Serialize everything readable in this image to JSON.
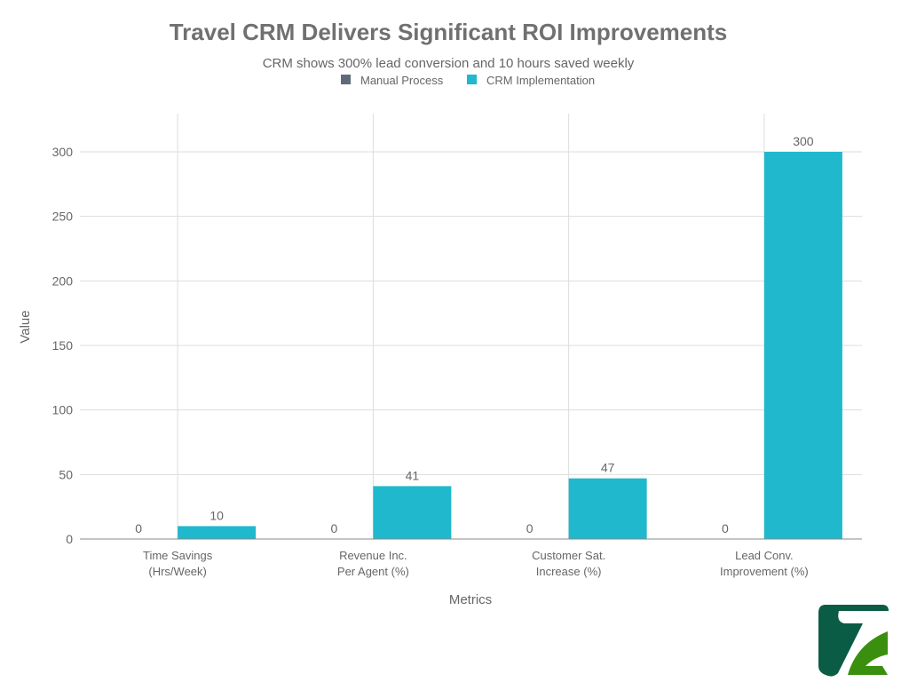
{
  "chart_data": {
    "type": "bar",
    "title": "Travel CRM Delivers Significant ROI Improvements",
    "subtitle": "CRM shows 300% lead conversion and 10 hours saved weekly",
    "xlabel": "Metrics",
    "ylabel": "Value",
    "ylim": [
      0,
      330
    ],
    "yticks": [
      0,
      50,
      100,
      150,
      200,
      250,
      300
    ],
    "grid": true,
    "legend_placement": "top-center",
    "categories": [
      [
        "Time Savings",
        "(Hrs/Week)"
      ],
      [
        "Revenue Inc.",
        "Per Agent (%)"
      ],
      [
        "Customer Sat.",
        "Increase (%)"
      ],
      [
        "Lead Conv.",
        "Improvement (%)"
      ]
    ],
    "series": [
      {
        "name": "Manual Process",
        "color": "#5f6b7a",
        "values": [
          0,
          0,
          0,
          0
        ]
      },
      {
        "name": "CRM Implementation",
        "color": "#1fb8cd",
        "values": [
          10,
          41,
          47,
          300
        ]
      }
    ]
  },
  "logo": {
    "colors": [
      "#0b5c45",
      "#3a8f0f"
    ]
  }
}
